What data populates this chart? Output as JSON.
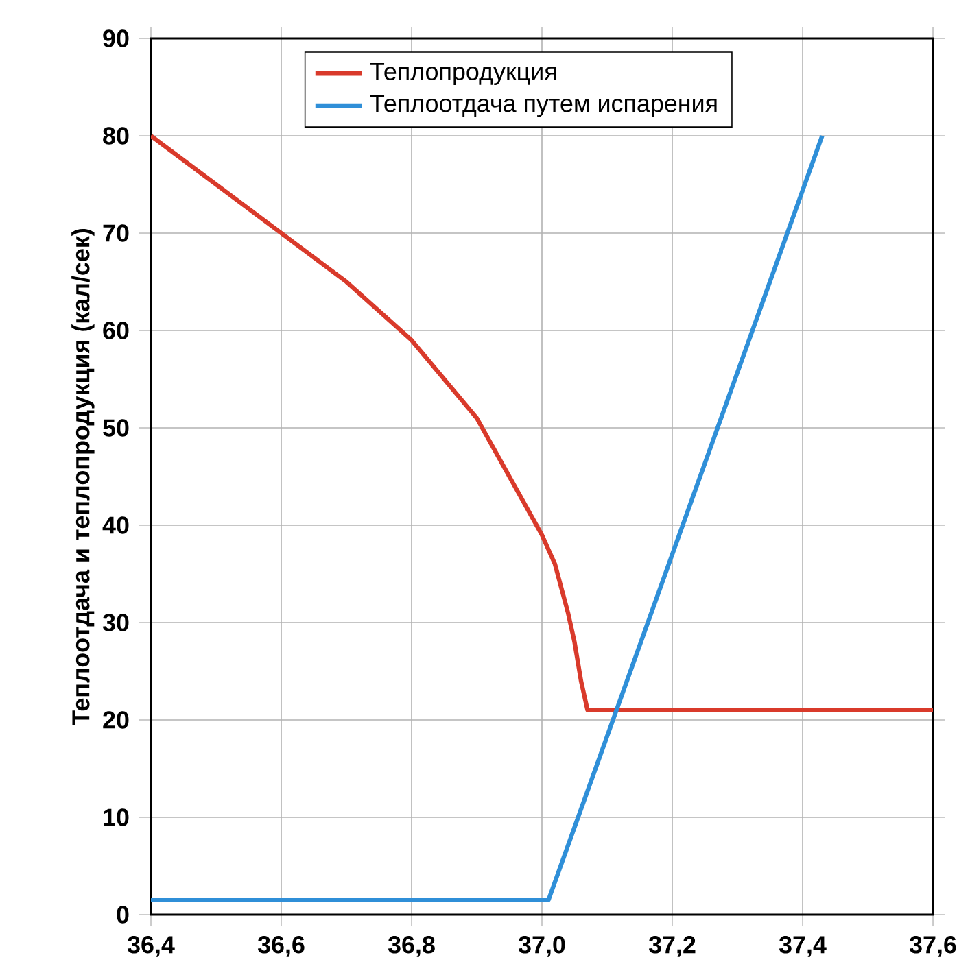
{
  "chart_data": {
    "type": "line",
    "ylabel": "Теплоотдача и теплопродукция (кал/сек)",
    "xlim": [
      36.4,
      37.6
    ],
    "ylim": [
      0,
      90
    ],
    "xticks": [
      {
        "value": 36.4,
        "label": "36,4"
      },
      {
        "value": 36.6,
        "label": "36,6"
      },
      {
        "value": 36.8,
        "label": "36,8"
      },
      {
        "value": 37.0,
        "label": "37,0"
      },
      {
        "value": 37.2,
        "label": "37,2"
      },
      {
        "value": 37.4,
        "label": "37,4"
      },
      {
        "value": 37.6,
        "label": "37,6"
      }
    ],
    "yticks": [
      0,
      10,
      20,
      30,
      40,
      50,
      60,
      70,
      80,
      90
    ],
    "grid": true,
    "legend": "top",
    "marker": "none",
    "line_style": "solid",
    "series": [
      {
        "name": "Теплопродукция",
        "color": "#d93a2b",
        "x": [
          36.4,
          36.5,
          36.6,
          36.7,
          36.8,
          36.9,
          36.95,
          37.0,
          37.02,
          37.04,
          37.05,
          37.06,
          37.07,
          37.6
        ],
        "values": [
          80,
          75,
          70,
          65,
          59,
          51,
          45,
          39,
          36,
          31,
          28,
          24,
          21,
          21
        ]
      },
      {
        "name": "Теплоотдача путем испарения",
        "color": "#2f8fd8",
        "x": [
          36.4,
          37.01,
          37.43
        ],
        "values": [
          1.5,
          1.5,
          80
        ]
      }
    ]
  }
}
